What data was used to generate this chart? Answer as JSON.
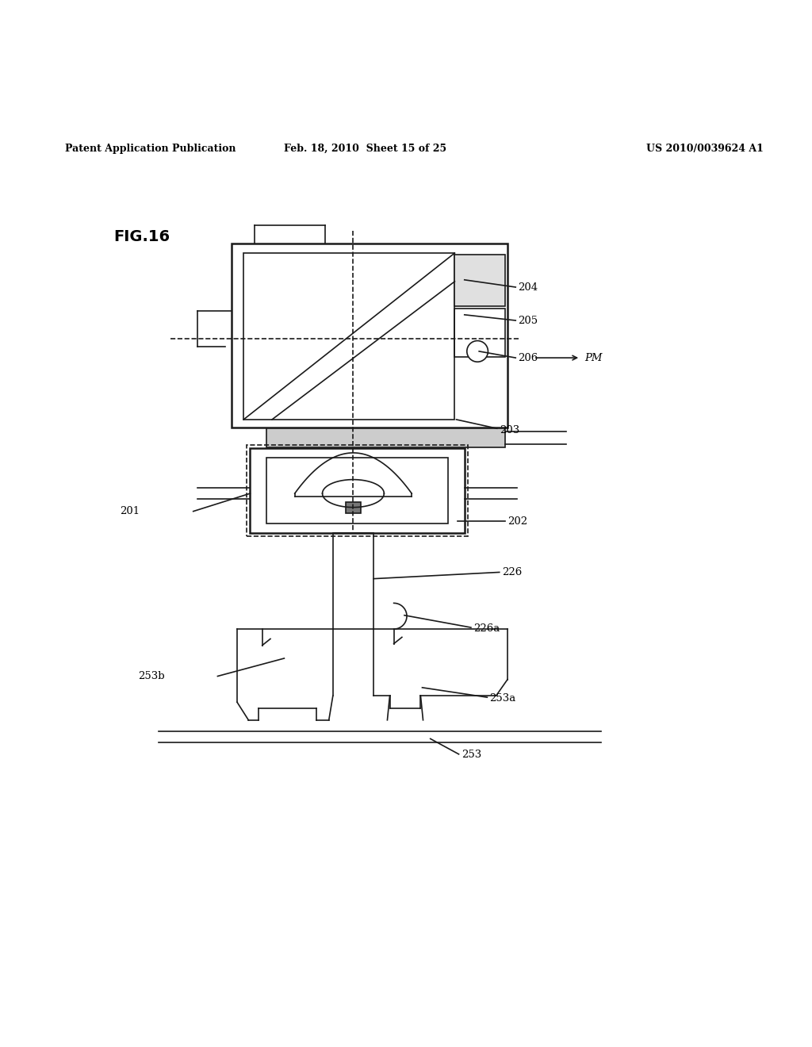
{
  "bg_color": "#ffffff",
  "line_color": "#1a1a1a",
  "header_left": "Patent Application Publication",
  "header_center": "Feb. 18, 2010  Sheet 15 of 25",
  "header_right": "US 2010/0039624 A1",
  "fig_label": "FIG.16"
}
